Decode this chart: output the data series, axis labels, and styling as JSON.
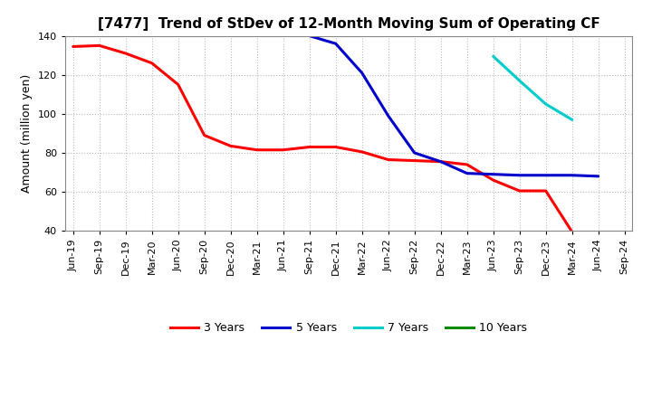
{
  "title": "[7477]  Trend of StDev of 12-Month Moving Sum of Operating CF",
  "ylabel": "Amount (million yen)",
  "ylim": [
    40,
    140
  ],
  "yticks": [
    40,
    60,
    80,
    100,
    120,
    140
  ],
  "background_color": "#ffffff",
  "plot_bg_color": "#ffffff",
  "grid_color": "#bbbbbb",
  "series": {
    "3years": {
      "color": "#ff0000",
      "x": [
        "Jun-19",
        "Sep-19",
        "Dec-19",
        "Mar-20",
        "Jun-20",
        "Sep-20",
        "Dec-20",
        "Mar-21",
        "Jun-21",
        "Sep-21",
        "Dec-21",
        "Mar-22",
        "Jun-22",
        "Sep-22",
        "Dec-22",
        "Mar-23",
        "Jun-23",
        "Sep-23",
        "Dec-23",
        "Mar-24"
      ],
      "y": [
        134.5,
        135.0,
        131.0,
        126.0,
        115.0,
        89.0,
        83.5,
        81.5,
        81.5,
        83.0,
        83.0,
        80.5,
        76.5,
        76.0,
        75.5,
        74.0,
        66.0,
        60.5,
        60.5,
        39.5
      ]
    },
    "5years": {
      "color": "#0000cc",
      "x": [
        "Sep-21",
        "Dec-21",
        "Mar-22",
        "Jun-22",
        "Sep-22",
        "Dec-22",
        "Mar-23",
        "Jun-23",
        "Sep-23",
        "Dec-23",
        "Mar-24",
        "Jun-24"
      ],
      "y": [
        140.0,
        136.0,
        121.0,
        99.0,
        80.0,
        75.5,
        69.5,
        69.0,
        68.5,
        68.5,
        68.5,
        68.0
      ]
    },
    "7years": {
      "color": "#00cccc",
      "x": [
        "Jun-23",
        "Sep-23",
        "Dec-23",
        "Mar-24"
      ],
      "y": [
        129.5,
        117.0,
        105.0,
        97.0
      ]
    },
    "10years": {
      "color": "#008800",
      "x": [],
      "y": []
    }
  },
  "xticks": [
    "Jun-19",
    "Sep-19",
    "Dec-19",
    "Mar-20",
    "Jun-20",
    "Sep-20",
    "Dec-20",
    "Mar-21",
    "Jun-21",
    "Sep-21",
    "Dec-21",
    "Mar-22",
    "Jun-22",
    "Sep-22",
    "Dec-22",
    "Mar-23",
    "Jun-23",
    "Sep-23",
    "Dec-23",
    "Mar-24",
    "Jun-24",
    "Sep-24"
  ],
  "legend": [
    {
      "label": "3 Years",
      "color": "#ff0000"
    },
    {
      "label": "5 Years",
      "color": "#0000cc"
    },
    {
      "label": "7 Years",
      "color": "#00cccc"
    },
    {
      "label": "10 Years",
      "color": "#008800"
    }
  ],
  "title_fontsize": 11,
  "ylabel_fontsize": 9,
  "tick_fontsize": 8,
  "legend_fontsize": 9
}
